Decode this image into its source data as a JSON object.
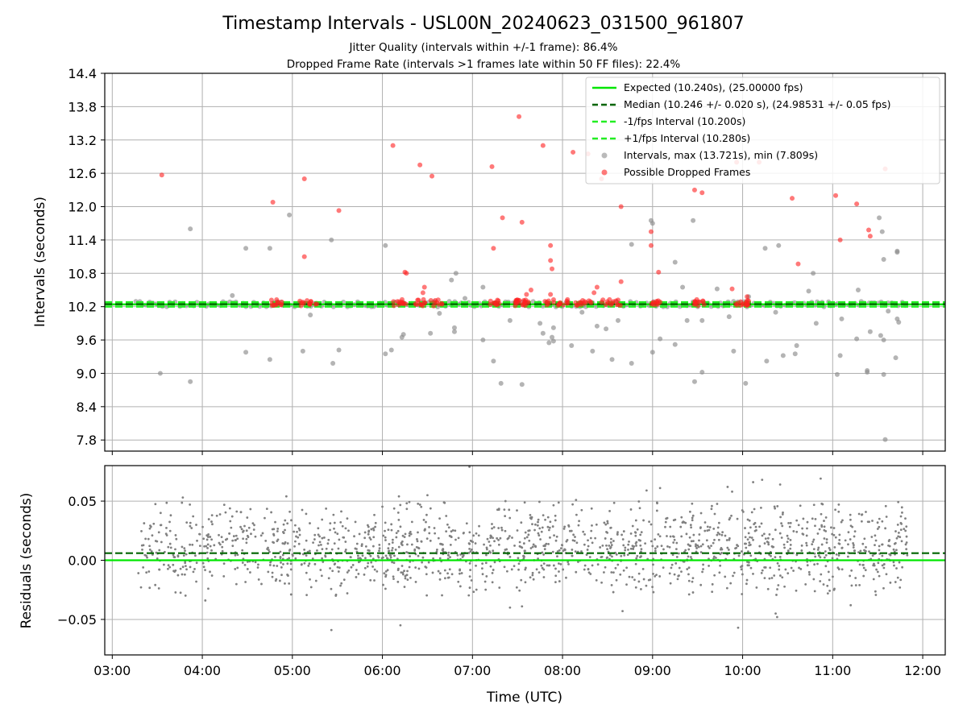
{
  "figure": {
    "title": "Timestamp Intervals - USL00N_20240623_031500_961807",
    "subtitle_1": "Jitter Quality (intervals within +/-1 frame): 86.4%",
    "subtitle_2": "Dropped Frame Rate (intervals >1 frames late within 50 FF files): 22.4%"
  },
  "chart_data": [
    {
      "type": "scatter",
      "panel": "intervals",
      "ylabel": "Intervals (seconds)",
      "xlabel": "",
      "xlim": [
        "02:55",
        "12:15"
      ],
      "ylim": [
        7.6,
        14.4
      ],
      "yticks": [
        "7.8",
        "8.4",
        "9.0",
        "9.6",
        "10.2",
        "10.8",
        "11.4",
        "12.0",
        "12.6",
        "13.2",
        "13.8",
        "14.4"
      ],
      "grid": true,
      "legend_position": "top-right",
      "colors": {
        "expected": "#00e600",
        "median": "#006400",
        "fps_interval": "#22ee22",
        "intervals": "#8c8c8c",
        "dropped": "#ff2020"
      },
      "reference_lines": [
        {
          "name": "Expected (10.240s), (25.00000 fps)",
          "y": 10.24,
          "style": "solid",
          "color": "#00e600"
        },
        {
          "name": "Median (10.246 +/- 0.020 s), (24.98531 +/- 0.05 fps)",
          "y": 10.246,
          "style": "dashed",
          "color": "#006400"
        },
        {
          "name": "-1/fps Interval (10.200s)",
          "y": 10.2,
          "style": "dashed",
          "color": "#22ee22"
        },
        {
          "name": "+1/fps Interval (10.280s)",
          "y": 10.28,
          "style": "dashed",
          "color": "#22ee22"
        }
      ],
      "series": [
        {
          "name": "Intervals, max (13.721s), min (7.809s)",
          "color": "#8c8c8c",
          "band": {
            "x_start": "03:15",
            "x_end": "11:50",
            "y_center": 10.245,
            "y_spread": 0.05,
            "count": 230
          },
          "points": [
            [
              "03:32",
              9.0
            ],
            [
              "03:52",
              8.85
            ],
            [
              "03:52",
              11.6
            ],
            [
              "04:29",
              11.25
            ],
            [
              "04:29",
              9.38
            ],
            [
              "04:45",
              11.25
            ],
            [
              "04:45",
              9.25
            ],
            [
              "04:58",
              11.85
            ],
            [
              "05:07",
              9.4
            ],
            [
              "05:26",
              11.4
            ],
            [
              "05:27",
              9.18
            ],
            [
              "05:31",
              9.42
            ],
            [
              "06:02",
              11.3
            ],
            [
              "06:02",
              9.35
            ],
            [
              "06:06",
              9.42
            ],
            [
              "06:13",
              9.65
            ],
            [
              "06:14",
              9.7
            ],
            [
              "06:32",
              9.72
            ],
            [
              "06:46",
              10.68
            ],
            [
              "06:48",
              9.82
            ],
            [
              "06:48",
              9.75
            ],
            [
              "06:49",
              10.8
            ],
            [
              "07:07",
              9.6
            ],
            [
              "07:07",
              10.55
            ],
            [
              "07:14",
              9.22
            ],
            [
              "07:19",
              8.82
            ],
            [
              "07:25",
              9.95
            ],
            [
              "07:33",
              8.8
            ],
            [
              "07:45",
              9.9
            ],
            [
              "07:47",
              9.72
            ],
            [
              "07:51",
              9.55
            ],
            [
              "07:53",
              9.65
            ],
            [
              "07:54",
              9.58
            ],
            [
              "07:54",
              9.82
            ],
            [
              "08:06",
              9.5
            ],
            [
              "08:20",
              9.4
            ],
            [
              "08:23",
              9.85
            ],
            [
              "08:29",
              9.8
            ],
            [
              "08:33",
              9.25
            ],
            [
              "08:37",
              9.95
            ],
            [
              "08:46",
              9.18
            ],
            [
              "08:46",
              11.32
            ],
            [
              "08:59",
              11.75
            ],
            [
              "09:00",
              9.38
            ],
            [
              "09:00",
              11.7
            ],
            [
              "09:05",
              9.62
            ],
            [
              "09:15",
              11.0
            ],
            [
              "09:15",
              9.52
            ],
            [
              "09:20",
              10.55
            ],
            [
              "09:23",
              9.95
            ],
            [
              "09:27",
              11.75
            ],
            [
              "09:28",
              8.85
            ],
            [
              "09:33",
              9.02
            ],
            [
              "09:33",
              9.95
            ],
            [
              "09:43",
              10.52
            ],
            [
              "09:51",
              10.02
            ],
            [
              "09:54",
              9.4
            ],
            [
              "10:02",
              8.82
            ],
            [
              "10:04",
              10.38
            ],
            [
              "10:15",
              11.25
            ],
            [
              "10:16",
              9.22
            ],
            [
              "10:24",
              11.3
            ],
            [
              "10:27",
              9.32
            ],
            [
              "10:35",
              9.35
            ],
            [
              "10:36",
              9.5
            ],
            [
              "10:44",
              10.48
            ],
            [
              "10:47",
              10.8
            ],
            [
              "10:49",
              9.9
            ],
            [
              "11:03",
              8.98
            ],
            [
              "11:05",
              9.32
            ],
            [
              "11:06",
              9.98
            ],
            [
              "11:16",
              9.62
            ],
            [
              "11:17",
              10.5
            ],
            [
              "11:23",
              9.05
            ],
            [
              "11:23",
              9.02
            ],
            [
              "11:25",
              9.75
            ],
            [
              "11:31",
              11.8
            ],
            [
              "11:32",
              9.68
            ],
            [
              "11:33",
              11.55
            ],
            [
              "11:34",
              11.05
            ],
            [
              "11:34",
              9.6
            ],
            [
              "11:34",
              8.98
            ],
            [
              "11:35",
              7.809
            ],
            [
              "11:37",
              10.12
            ],
            [
              "11:42",
              9.28
            ],
            [
              "11:43",
              11.2
            ],
            [
              "11:43",
              11.18
            ],
            [
              "11:43",
              9.98
            ],
            [
              "11:44",
              9.92
            ],
            [
              "05:12",
              10.05
            ],
            [
              "06:38",
              10.08
            ],
            [
              "08:13",
              10.1
            ],
            [
              "10:22",
              10.1
            ],
            [
              "04:20",
              10.4
            ],
            [
              "06:55",
              10.35
            ]
          ]
        },
        {
          "name": "Possible Dropped Frames",
          "color": "#ff2020",
          "clusters": [
            {
              "x_start": "04:45",
              "x_end": "04:53",
              "y": 10.27,
              "count": 12
            },
            {
              "x_start": "05:05",
              "x_end": "05:17",
              "y": 10.27,
              "count": 14
            },
            {
              "x_start": "06:07",
              "x_end": "06:17",
              "y": 10.27,
              "count": 12
            },
            {
              "x_start": "06:22",
              "x_end": "06:40",
              "y": 10.27,
              "count": 20
            },
            {
              "x_start": "07:11",
              "x_end": "07:20",
              "y": 10.27,
              "count": 10
            },
            {
              "x_start": "07:28",
              "x_end": "07:38",
              "y": 10.27,
              "count": 22
            },
            {
              "x_start": "07:48",
              "x_end": "08:22",
              "y": 10.27,
              "count": 30
            },
            {
              "x_start": "08:25",
              "x_end": "08:40",
              "y": 10.27,
              "count": 14
            },
            {
              "x_start": "08:59",
              "x_end": "09:07",
              "y": 10.27,
              "count": 10
            },
            {
              "x_start": "09:26",
              "x_end": "09:35",
              "y": 10.27,
              "count": 12
            },
            {
              "x_start": "09:55",
              "x_end": "10:04",
              "y": 10.27,
              "count": 14
            }
          ],
          "points": [
            [
              "03:33",
              12.57
            ],
            [
              "04:47",
              12.08
            ],
            [
              "05:08",
              12.5
            ],
            [
              "05:08",
              11.1
            ],
            [
              "05:31",
              11.93
            ],
            [
              "06:07",
              13.1
            ],
            [
              "06:15",
              10.82
            ],
            [
              "06:16",
              10.8
            ],
            [
              "06:25",
              12.75
            ],
            [
              "06:27",
              10.45
            ],
            [
              "06:28",
              10.55
            ],
            [
              "06:33",
              12.55
            ],
            [
              "07:13",
              12.72
            ],
            [
              "07:14",
              11.25
            ],
            [
              "07:20",
              11.8
            ],
            [
              "07:31",
              13.62
            ],
            [
              "07:33",
              11.72
            ],
            [
              "07:36",
              10.42
            ],
            [
              "07:39",
              10.5
            ],
            [
              "07:47",
              13.1
            ],
            [
              "07:52",
              11.3
            ],
            [
              "07:52",
              11.03
            ],
            [
              "07:53",
              10.88
            ],
            [
              "07:52",
              10.42
            ],
            [
              "08:07",
              12.98
            ],
            [
              "08:17",
              12.95
            ],
            [
              "08:21",
              10.45
            ],
            [
              "08:23",
              10.55
            ],
            [
              "08:26",
              12.5
            ],
            [
              "08:39",
              12.0
            ],
            [
              "08:39",
              10.65
            ],
            [
              "08:59",
              11.55
            ],
            [
              "08:59",
              11.3
            ],
            [
              "09:04",
              10.82
            ],
            [
              "09:28",
              12.3
            ],
            [
              "09:33",
              12.25
            ],
            [
              "09:53",
              10.52
            ],
            [
              "09:56",
              12.8
            ],
            [
              "10:03",
              10.38
            ],
            [
              "10:04",
              10.3
            ],
            [
              "10:11",
              12.8
            ],
            [
              "10:33",
              12.15
            ],
            [
              "10:37",
              10.97
            ],
            [
              "11:02",
              12.2
            ],
            [
              "11:05",
              11.4
            ],
            [
              "11:16",
              12.05
            ],
            [
              "11:24",
              11.58
            ],
            [
              "11:25",
              11.47
            ],
            [
              "11:35",
              12.68
            ]
          ]
        }
      ]
    },
    {
      "type": "scatter",
      "panel": "residuals",
      "ylabel": "Residuals (seconds)",
      "xlabel": "Time (UTC)",
      "xlim": [
        "02:55",
        "12:15"
      ],
      "ylim": [
        -0.08,
        0.08
      ],
      "yticks": [
        "−0.05",
        "0.00",
        "0.05"
      ],
      "xticks": [
        "03:00",
        "04:00",
        "05:00",
        "06:00",
        "07:00",
        "08:00",
        "09:00",
        "10:00",
        "11:00",
        "12:00"
      ],
      "grid": true,
      "colors": {
        "points": "#808080",
        "expected": "#00e600",
        "median": "#006400"
      },
      "reference_lines": [
        {
          "y": 0.0,
          "style": "solid",
          "color": "#00e600"
        },
        {
          "y": 0.006,
          "style": "dashed",
          "color": "#006400"
        }
      ],
      "series": [
        {
          "color": "#808080",
          "cloud": {
            "x_start": "03:17",
            "x_end": "11:50",
            "y_low": -0.03,
            "y_high": 0.05,
            "count": 1600
          },
          "points": [
            [
              "05:26",
              -0.059
            ],
            [
              "06:12",
              -0.055
            ],
            [
              "06:58",
              0.079
            ],
            [
              "07:25",
              -0.04
            ],
            [
              "07:33",
              -0.039
            ],
            [
              "08:40",
              -0.043
            ],
            [
              "08:56",
              0.059
            ],
            [
              "09:05",
              0.061
            ],
            [
              "09:50",
              0.062
            ],
            [
              "09:53",
              0.058
            ],
            [
              "09:57",
              -0.057
            ],
            [
              "10:07",
              0.066
            ],
            [
              "10:13",
              0.068
            ],
            [
              "10:22",
              -0.045
            ],
            [
              "10:23",
              -0.048
            ],
            [
              "10:25",
              0.064
            ],
            [
              "10:52",
              0.069
            ],
            [
              "04:02",
              -0.034
            ],
            [
              "03:47",
              0.053
            ],
            [
              "04:56",
              0.054
            ],
            [
              "06:11",
              0.054
            ],
            [
              "06:30",
              0.055
            ],
            [
              "07:22",
              0.05
            ],
            [
              "08:09",
              0.051
            ],
            [
              "11:12",
              -0.038
            ]
          ]
        }
      ]
    }
  ]
}
